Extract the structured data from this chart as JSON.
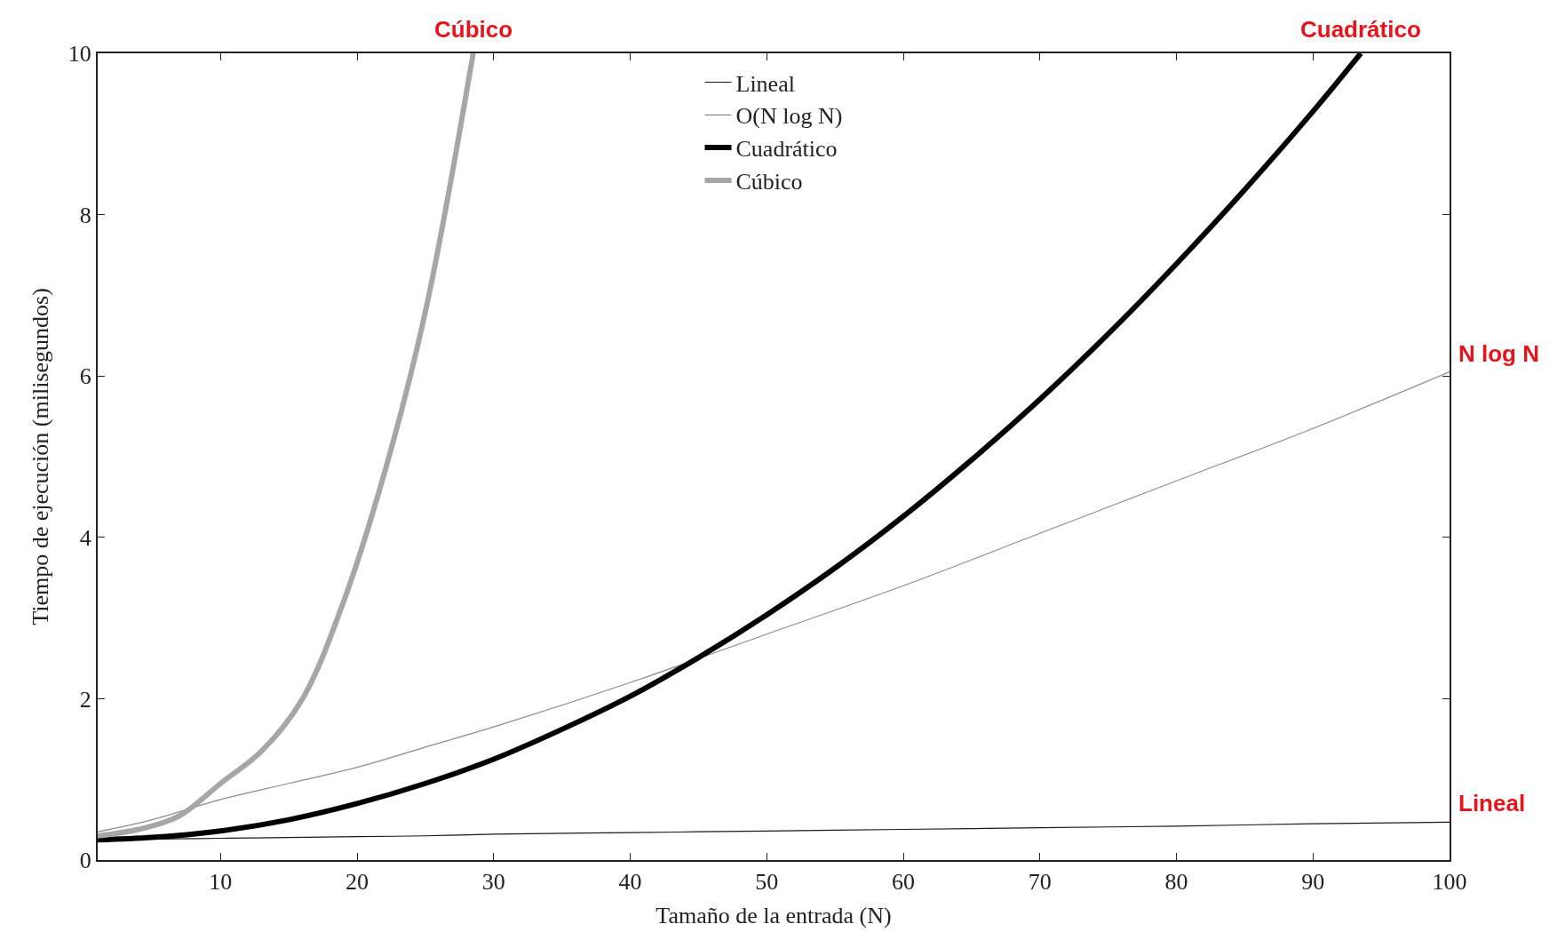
{
  "chart_data": {
    "type": "line",
    "xlabel": "Tamaño de la entrada (N)",
    "ylabel": "Tiempo de ejecución (milisegundos)",
    "x": [
      1,
      5,
      10,
      15,
      20,
      25,
      30,
      40,
      50,
      60,
      70,
      80,
      90,
      100
    ],
    "series": [
      {
        "name": "Lineal",
        "color": "#1a1a1a",
        "values": [
          0.25,
          0.26,
          0.27,
          0.28,
          0.29,
          0.3,
          0.32,
          0.34,
          0.36,
          0.38,
          0.4,
          0.42,
          0.45,
          0.47
        ]
      },
      {
        "name": "O(N log N)",
        "color": "#8c8c8c",
        "values": [
          0.35,
          0.5,
          0.75,
          0.95,
          1.15,
          1.4,
          1.65,
          2.2,
          2.8,
          3.4,
          4.05,
          4.7,
          5.35,
          6.05
        ]
      },
      {
        "name": "Cuadrático",
        "color": "#000000",
        "x": [
          1,
          5,
          10,
          15,
          20,
          25,
          30,
          35,
          40,
          45,
          50,
          55,
          60,
          65,
          70,
          75,
          80,
          85,
          90,
          93.5
        ],
        "values": [
          0.25,
          0.28,
          0.36,
          0.5,
          0.7,
          0.95,
          1.25,
          1.62,
          2.03,
          2.51,
          3.04,
          3.62,
          4.26,
          4.96,
          5.71,
          6.52,
          7.39,
          8.31,
          9.28,
          10.0
        ]
      },
      {
        "name": "Cúbico",
        "color": "#a6a6a6",
        "x": [
          1,
          4,
          7,
          10,
          13,
          16,
          19,
          22,
          25,
          28.5
        ],
        "values": [
          0.3,
          0.38,
          0.55,
          0.95,
          1.35,
          2.0,
          3.2,
          4.8,
          6.8,
          10.0
        ]
      }
    ],
    "xlim": [
      1,
      100
    ],
    "ylim": [
      0,
      10
    ],
    "xticks": [
      10,
      20,
      30,
      40,
      50,
      60,
      70,
      80,
      90,
      100
    ],
    "yticks": [
      0,
      2,
      4,
      6,
      8,
      10
    ],
    "legend": "top",
    "marker": "none",
    "line_style": "solid",
    "annotations": [
      {
        "text": "Cúbico",
        "x": 28.5,
        "y": 10
      },
      {
        "text": "Cuadrático",
        "x": 93.5,
        "y": 10
      },
      {
        "text": "N log N",
        "x": 100,
        "y": 6.05
      },
      {
        "text": "Lineal",
        "x": 100,
        "y": 0.47
      }
    ]
  }
}
